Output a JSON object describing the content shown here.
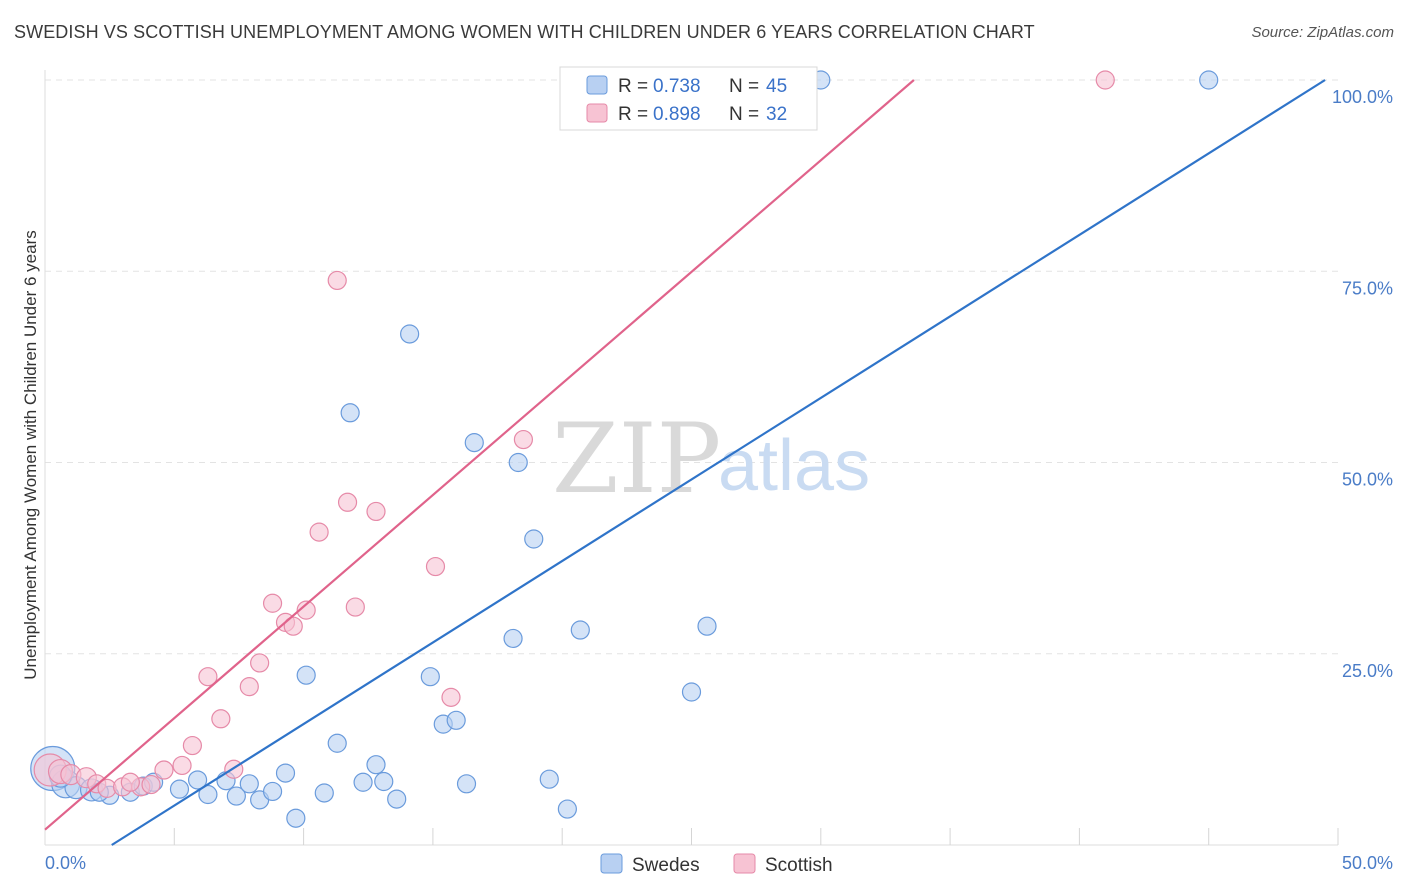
{
  "header": {
    "title": "SWEDISH VS SCOTTISH UNEMPLOYMENT AMONG WOMEN WITH CHILDREN UNDER 6 YEARS CORRELATION CHART",
    "source": "Source: ZipAtlas.com"
  },
  "watermark": {
    "zip": "ZIP",
    "atlas": "atlas"
  },
  "legend": {
    "swedes": {
      "r_label": "R =",
      "r_value": "0.738",
      "n_label": "N =",
      "n_value": "45"
    },
    "scottish": {
      "r_label": "R =",
      "r_value": "0.898",
      "n_label": "N =",
      "n_value": "32"
    }
  },
  "chart_data": {
    "type": "scatter",
    "title": "SWEDISH VS SCOTTISH UNEMPLOYMENT AMONG WOMEN WITH CHILDREN UNDER 6 YEARS CORRELATION CHART",
    "xlabel": "",
    "ylabel": "Unemployment Among Women with Children Under 6 years",
    "xlim": [
      0,
      50
    ],
    "ylim": [
      0,
      100
    ],
    "x_tick_labels": [
      "0.0%",
      "50.0%"
    ],
    "y_tick_labels": [
      {
        "value": 100,
        "label": "100.0%"
      },
      {
        "value": 75,
        "label": "75.0%"
      },
      {
        "value": 50,
        "label": "50.0%"
      },
      {
        "value": 25,
        "label": "25.0%"
      }
    ],
    "grid": true,
    "legend_position": "top-center",
    "colors": {
      "swedes_fill": "#b8d0f2",
      "swedes_stroke": "#6a9bdc",
      "swedes_line": "#2f74c9",
      "scottish_fill": "#f7c3d3",
      "scottish_stroke": "#e68aa8",
      "scottish_line": "#e0638b"
    },
    "series": [
      {
        "name": "Swedes",
        "r": 0.738,
        "n": 45,
        "trendline": [
          [
            0,
            -5.5
          ],
          [
            49.5,
            100
          ]
        ],
        "points": [
          [
            0.3,
            10.0,
            22
          ],
          [
            0.8,
            8.0,
            14
          ],
          [
            1.2,
            7.5,
            11
          ],
          [
            1.8,
            7.2,
            11
          ],
          [
            2.5,
            6.5,
            9
          ],
          [
            3.3,
            6.9,
            9
          ],
          [
            3.8,
            7.7,
            9
          ],
          [
            4.2,
            8.2,
            9
          ],
          [
            5.2,
            7.3,
            9
          ],
          [
            5.9,
            8.5,
            9
          ],
          [
            6.3,
            6.6,
            9
          ],
          [
            7.0,
            8.4,
            9
          ],
          [
            7.4,
            6.4,
            9
          ],
          [
            7.9,
            8.0,
            9
          ],
          [
            8.3,
            5.9,
            9
          ],
          [
            8.8,
            7.0,
            9
          ],
          [
            9.3,
            9.4,
            9
          ],
          [
            9.7,
            3.5,
            9
          ],
          [
            10.1,
            22.2,
            9
          ],
          [
            10.8,
            6.8,
            9
          ],
          [
            11.3,
            13.3,
            9
          ],
          [
            11.8,
            56.5,
            9
          ],
          [
            12.3,
            8.2,
            9
          ],
          [
            12.8,
            10.5,
            9
          ],
          [
            13.1,
            8.3,
            9
          ],
          [
            13.6,
            6.0,
            9
          ],
          [
            14.1,
            66.8,
            9
          ],
          [
            14.9,
            22.0,
            9
          ],
          [
            15.4,
            15.8,
            9
          ],
          [
            15.9,
            16.3,
            9
          ],
          [
            16.3,
            8.0,
            9
          ],
          [
            16.6,
            52.6,
            9
          ],
          [
            18.1,
            27.0,
            9
          ],
          [
            18.3,
            50.0,
            9
          ],
          [
            18.9,
            40.0,
            9
          ],
          [
            19.5,
            8.6,
            9
          ],
          [
            20.2,
            4.7,
            9
          ],
          [
            20.7,
            28.1,
            9
          ],
          [
            25.0,
            20.0,
            9
          ],
          [
            25.6,
            28.6,
            9
          ],
          [
            28.0,
            100.0,
            9
          ],
          [
            30.0,
            100.0,
            9
          ],
          [
            45.0,
            100.0,
            9
          ],
          [
            0.6,
            9.0,
            11
          ],
          [
            2.1,
            6.9,
            9
          ]
        ]
      },
      {
        "name": "Scottish",
        "r": 0.898,
        "n": 32,
        "trendline": [
          [
            0,
            2
          ],
          [
            33.6,
            100
          ]
        ],
        "points": [
          [
            0.2,
            9.8,
            16
          ],
          [
            0.6,
            9.6,
            12
          ],
          [
            1.0,
            9.2,
            10
          ],
          [
            1.6,
            8.8,
            10
          ],
          [
            2.0,
            8.0,
            9
          ],
          [
            2.4,
            7.4,
            9
          ],
          [
            3.0,
            7.6,
            9
          ],
          [
            3.7,
            7.6,
            9
          ],
          [
            4.1,
            7.9,
            9
          ],
          [
            4.6,
            9.8,
            9
          ],
          [
            5.3,
            10.4,
            9
          ],
          [
            5.7,
            13.0,
            9
          ],
          [
            6.3,
            22.0,
            9
          ],
          [
            6.8,
            16.5,
            9
          ],
          [
            7.3,
            9.9,
            9
          ],
          [
            7.9,
            20.7,
            9
          ],
          [
            8.3,
            23.8,
            9
          ],
          [
            8.8,
            31.6,
            9
          ],
          [
            9.3,
            29.1,
            9
          ],
          [
            9.6,
            28.6,
            9
          ],
          [
            10.1,
            30.7,
            9
          ],
          [
            10.6,
            40.9,
            9
          ],
          [
            11.3,
            73.8,
            9
          ],
          [
            11.7,
            44.8,
            9
          ],
          [
            12.0,
            31.1,
            9
          ],
          [
            12.8,
            43.6,
            9
          ],
          [
            15.1,
            36.4,
            9
          ],
          [
            15.7,
            19.3,
            9
          ],
          [
            18.5,
            53.0,
            9
          ],
          [
            26.0,
            100.0,
            9
          ],
          [
            41.0,
            100.0,
            9
          ],
          [
            3.3,
            8.2,
            9
          ]
        ]
      }
    ]
  },
  "bottom_legend": {
    "swedes_label": "Swedes",
    "scottish_label": "Scottish"
  }
}
